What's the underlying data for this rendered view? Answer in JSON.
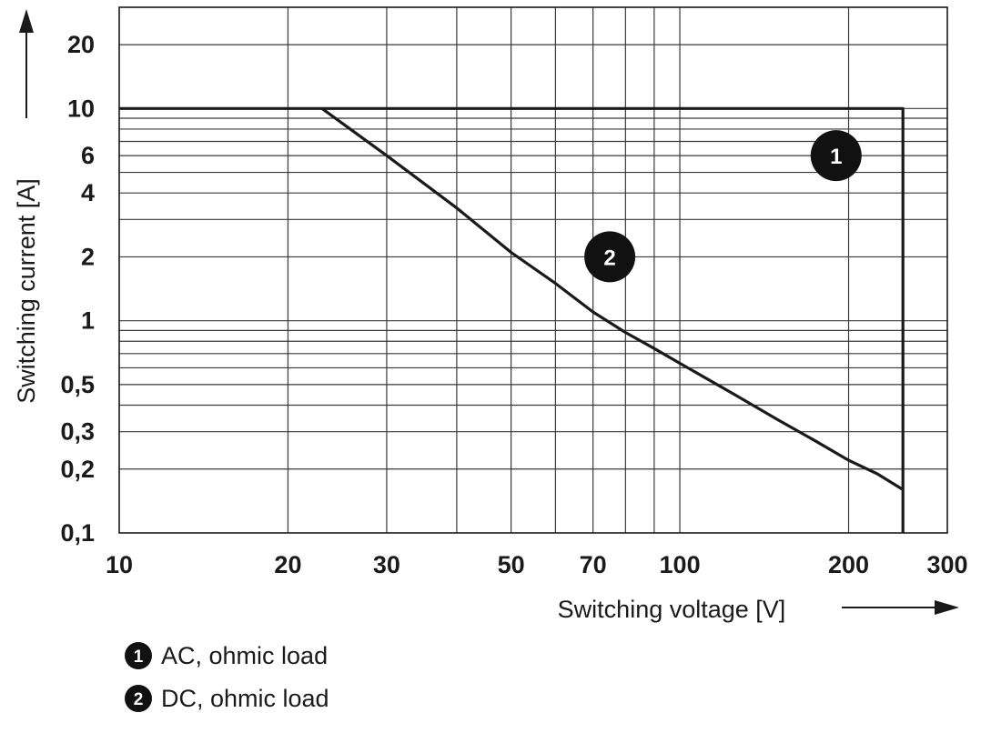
{
  "chart_data": {
    "type": "line",
    "xlabel": "Switching voltage [V]",
    "ylabel": "Switching current [A]",
    "x_scale": "log",
    "y_scale": "log",
    "xlim": [
      10,
      300
    ],
    "ylim": [
      0.1,
      30
    ],
    "grid": true,
    "x_ticks": [
      {
        "value": 10,
        "label": "10"
      },
      {
        "value": 20,
        "label": "20"
      },
      {
        "value": 30,
        "label": "30"
      },
      {
        "value": 50,
        "label": "50"
      },
      {
        "value": 70,
        "label": "70"
      },
      {
        "value": 100,
        "label": "100"
      },
      {
        "value": 200,
        "label": "200"
      },
      {
        "value": 300,
        "label": "300"
      }
    ],
    "y_ticks": [
      {
        "value": 0.1,
        "label": "0,1"
      },
      {
        "value": 0.2,
        "label": "0,2"
      },
      {
        "value": 0.3,
        "label": "0,3"
      },
      {
        "value": 0.5,
        "label": "0,5"
      },
      {
        "value": 1,
        "label": "1"
      },
      {
        "value": 2,
        "label": "2"
      },
      {
        "value": 4,
        "label": "4"
      },
      {
        "value": 6,
        "label": "6"
      },
      {
        "value": 10,
        "label": "10"
      },
      {
        "value": 20,
        "label": "20"
      }
    ],
    "x_grid": [
      20,
      30,
      40,
      50,
      60,
      70,
      80,
      90,
      100,
      200
    ],
    "y_grid": [
      0.2,
      0.3,
      0.4,
      0.5,
      0.6,
      0.7,
      0.8,
      0.9,
      1,
      2,
      3,
      4,
      5,
      6,
      7,
      8,
      9,
      10,
      20
    ],
    "series": [
      {
        "marker": "1",
        "name": "AC, ohmic load",
        "x": [
          10,
          250,
          250
        ],
        "y": [
          10,
          10,
          0.1
        ],
        "marker_at": [
          190,
          6
        ]
      },
      {
        "marker": "2",
        "name": "DC, ohmic load",
        "x": [
          23,
          30,
          40,
          50,
          60,
          70,
          80,
          90,
          100,
          125,
          150,
          175,
          200,
          225,
          250
        ],
        "y": [
          10,
          6,
          3.4,
          2.1,
          1.5,
          1.1,
          0.88,
          0.74,
          0.63,
          0.45,
          0.34,
          0.27,
          0.22,
          0.19,
          0.16
        ],
        "marker_at": [
          75,
          2.0
        ]
      }
    ],
    "legend": {
      "placement": "bottom-left",
      "items": [
        {
          "marker": "1",
          "label": "AC, ohmic load"
        },
        {
          "marker": "2",
          "label": "DC, ohmic load"
        }
      ]
    },
    "colors": {
      "line": "#1a1a1a",
      "grid": "#3a3a3a",
      "marker_fill": "#111111",
      "marker_text": "#ffffff"
    }
  }
}
